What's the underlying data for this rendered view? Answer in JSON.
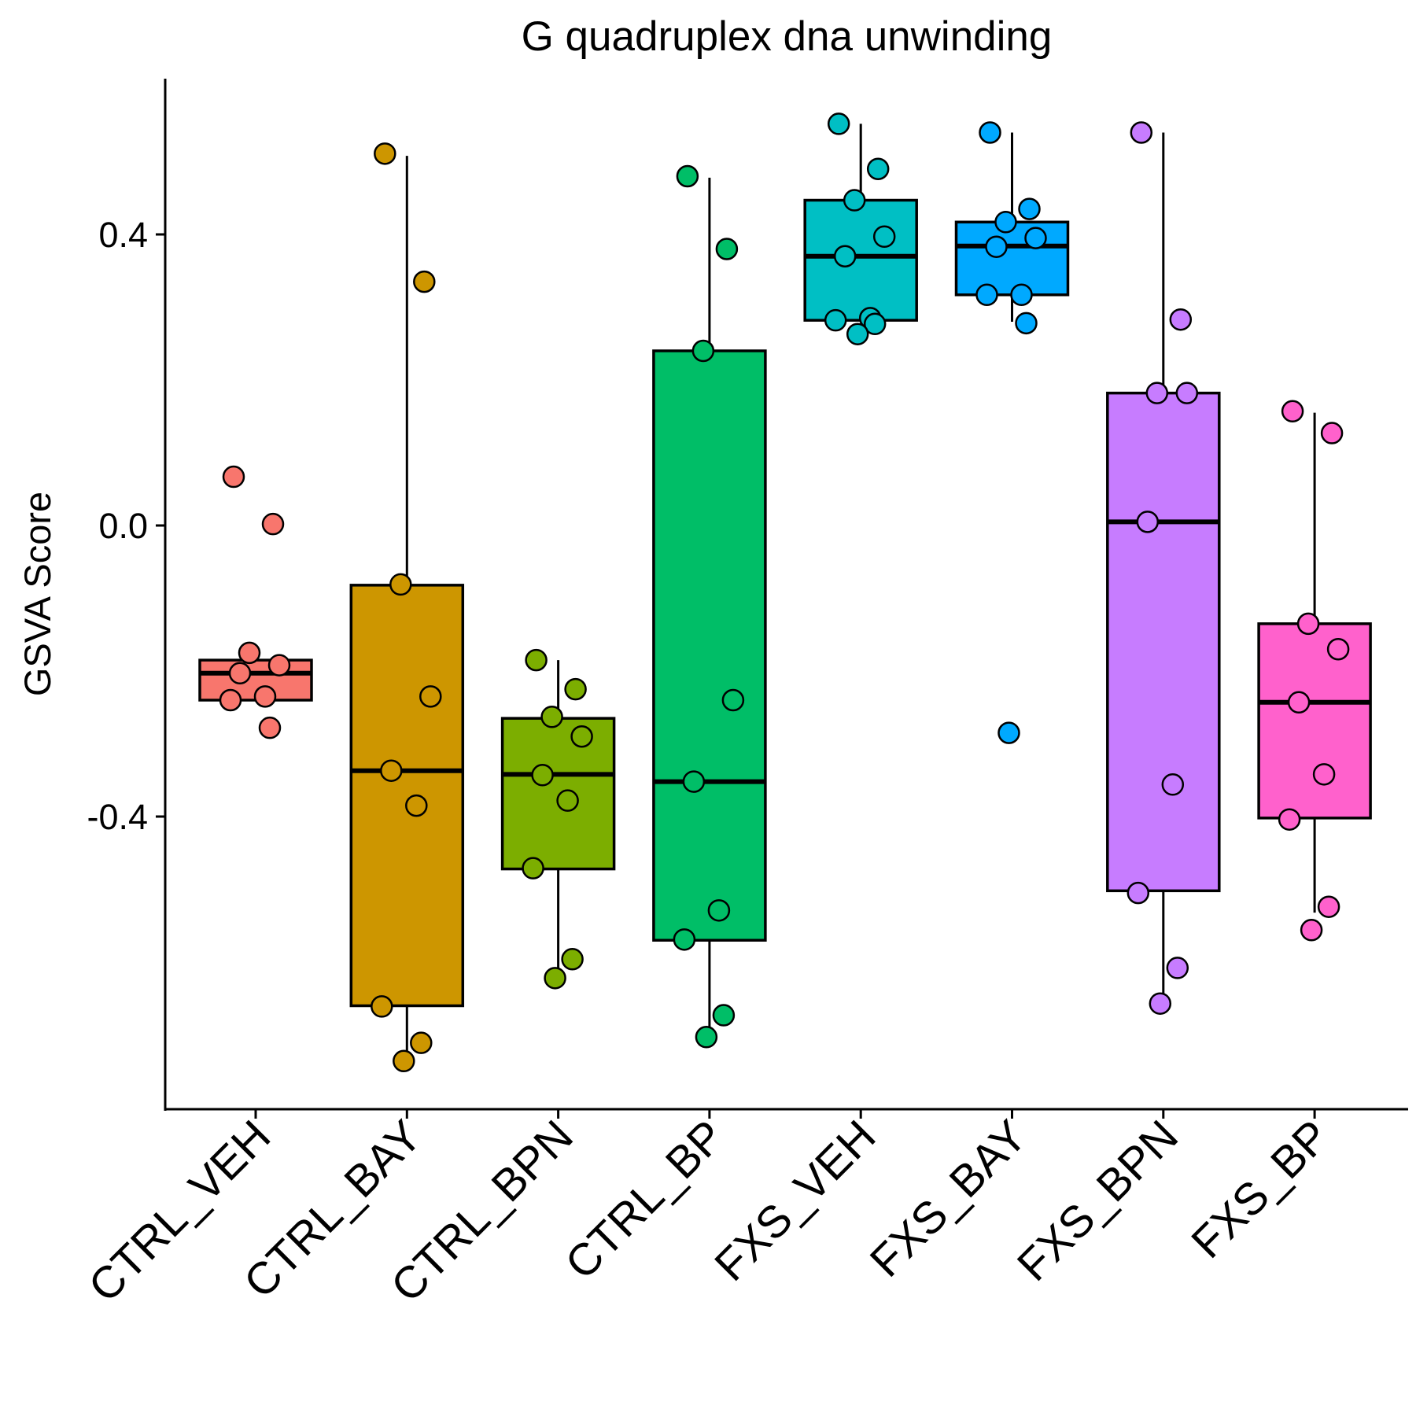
{
  "chart_data": {
    "type": "box",
    "title": "G quadruplex dna unwinding",
    "xlabel": "",
    "ylabel": "GSVA Score",
    "ylim": [
      -0.8,
      0.62
    ],
    "yticks": [
      -0.4,
      0.0,
      0.4
    ],
    "ytick_labels": [
      "-0.4",
      "0.0",
      "0.4"
    ],
    "grid": false,
    "legend": "none",
    "categories": [
      "CTRL_VEH",
      "CTRL_BAY",
      "CTRL_BPN",
      "CTRL_BP",
      "FXS_VEH",
      "FXS_BAY",
      "FXS_BPN",
      "FXS_BP"
    ],
    "colors": [
      "#F8766D",
      "#CD9600",
      "#7CAE00",
      "#00BE67",
      "#00BFC4",
      "#00A9FF",
      "#C77CFF",
      "#FF61CC"
    ],
    "boxes": [
      {
        "q1": -0.24,
        "median": -0.203,
        "q3": -0.185,
        "whisker_low": -0.24,
        "whisker_high": -0.185
      },
      {
        "q1": -0.66,
        "median": -0.337,
        "q3": -0.082,
        "whisker_low": -0.735,
        "whisker_high": 0.508
      },
      {
        "q1": -0.472,
        "median": -0.342,
        "q3": -0.265,
        "whisker_low": -0.622,
        "whisker_high": -0.185
      },
      {
        "q1": -0.57,
        "median": -0.352,
        "q3": 0.24,
        "whisker_low": -0.7,
        "whisker_high": 0.478
      },
      {
        "q1": 0.282,
        "median": 0.37,
        "q3": 0.447,
        "whisker_low": 0.282,
        "whisker_high": 0.552
      },
      {
        "q1": 0.317,
        "median": 0.384,
        "q3": 0.417,
        "whisker_low": 0.28,
        "whisker_high": 0.54
      },
      {
        "q1": -0.502,
        "median": 0.005,
        "q3": 0.182,
        "whisker_low": -0.657,
        "whisker_high": 0.54
      },
      {
        "q1": -0.402,
        "median": -0.243,
        "q3": -0.135,
        "whisker_low": -0.532,
        "whisker_high": 0.155
      }
    ],
    "points": [
      [
        0.067,
        0.002,
        -0.175,
        -0.192,
        -0.203,
        -0.235,
        -0.24,
        -0.278
      ],
      [
        0.511,
        0.335,
        -0.081,
        -0.235,
        -0.337,
        -0.385,
        -0.661,
        -0.711,
        -0.736
      ],
      [
        -0.185,
        -0.225,
        -0.263,
        -0.29,
        -0.343,
        -0.378,
        -0.471,
        -0.596,
        -0.622
      ],
      [
        0.48,
        0.38,
        0.24,
        -0.24,
        -0.352,
        -0.529,
        -0.569,
        -0.673,
        -0.703
      ],
      [
        0.552,
        0.49,
        0.447,
        0.397,
        0.37,
        0.285,
        0.282,
        0.277,
        0.263
      ],
      [
        0.54,
        0.435,
        0.417,
        0.395,
        0.383,
        0.317,
        0.317,
        0.278,
        -0.285
      ],
      [
        0.54,
        0.283,
        0.182,
        0.182,
        0.005,
        -0.356,
        -0.505,
        -0.608,
        -0.657
      ],
      [
        0.157,
        0.127,
        -0.135,
        -0.17,
        -0.243,
        -0.342,
        -0.404,
        -0.524,
        -0.556
      ]
    ]
  }
}
